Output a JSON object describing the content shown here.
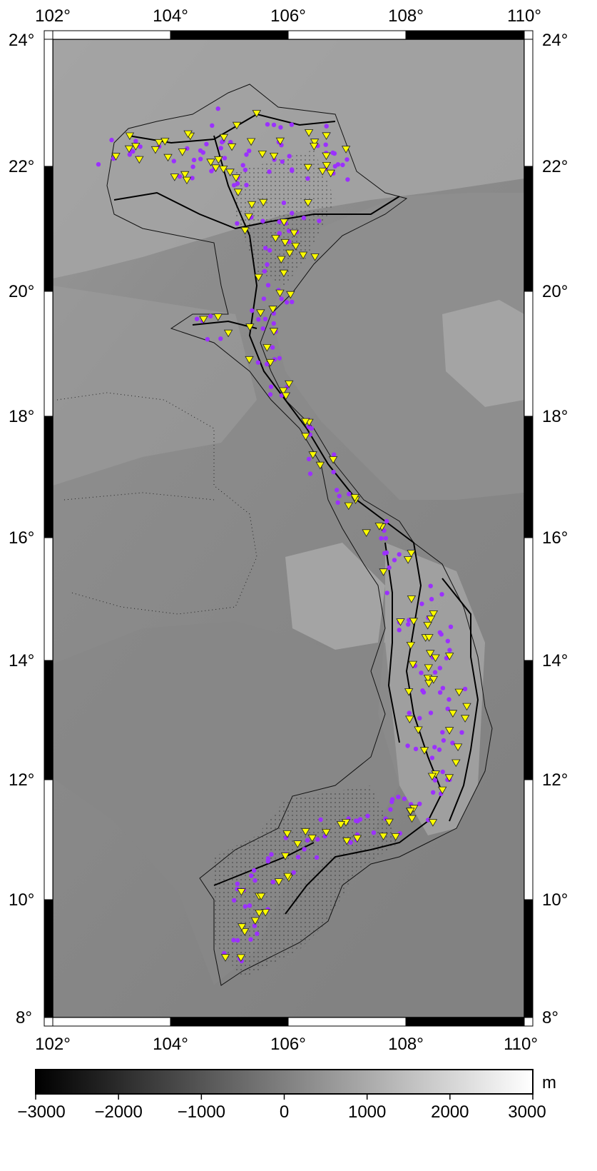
{
  "map": {
    "lon_range": [
      102,
      110
    ],
    "lat_range": [
      8,
      24
    ],
    "lon_labels": [
      "102°",
      "104°",
      "106°",
      "108°",
      "110°"
    ],
    "lat_labels": [
      "24°",
      "22°",
      "20°",
      "18°",
      "16°",
      "14°",
      "12°",
      "10°",
      "8°"
    ],
    "background_relief": "shaded grayscale elevation / bathymetry",
    "land_color": "#8a8a8a",
    "sea_color": "#888888",
    "highland_color": "#c8c8c8",
    "triangle_color": "#ffff00",
    "circle_color": "#9b30ff",
    "road_color": "#000000"
  },
  "colorbar": {
    "unit": "m",
    "ticks": [
      "−3000",
      "−2000",
      "−1000",
      "0",
      "1000",
      "2000",
      "3000"
    ],
    "min": -3000,
    "max": 3000,
    "colors": [
      "#000000",
      "#ffffff"
    ]
  }
}
